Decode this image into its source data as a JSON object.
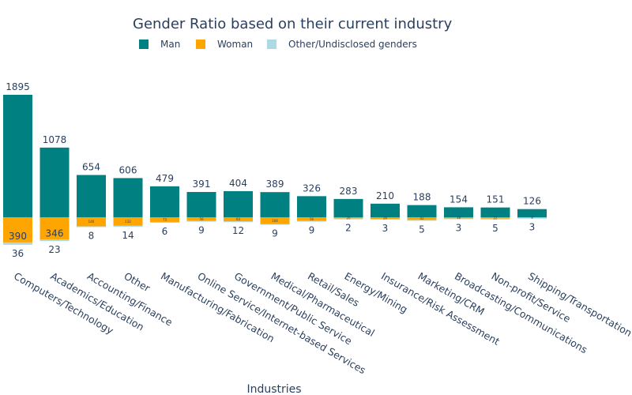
{
  "chart_data": {
    "type": "bar",
    "barmode": "relative",
    "title": "Gender Ratio based on their current industry",
    "xlabel": "Industries",
    "ylabel": "",
    "legend_position": "top",
    "categories": [
      "Computers/Technology",
      "Academics/Education",
      "Accounting/Finance",
      "Other",
      "Manufacturing/Fabrication",
      "Online Service/Internet-based Services",
      "Government/Public Service",
      "Medical/Pharmaceutical",
      "Retail/Sales",
      "Energy/Mining",
      "Insurance/Risk Assessment",
      "Marketing/CRM",
      "Broadcasting/Communications",
      "Non-profit/Service",
      "Shipping/Transportation"
    ],
    "series": [
      {
        "name": "Man",
        "color": "#008080",
        "values": [
          1895,
          1078,
          654,
          606,
          479,
          391,
          404,
          389,
          326,
          283,
          210,
          188,
          154,
          151,
          126
        ]
      },
      {
        "name": "Woman",
        "color": "#FFA500",
        "values": [
          390,
          346,
          140,
          132,
          73,
          56,
          64,
          104,
          56,
          20,
          26,
          42,
          18,
          22,
          9
        ]
      },
      {
        "name": "Other/Undisclosed genders",
        "color": "#ADD8E6",
        "values": [
          36,
          23,
          8,
          14,
          6,
          9,
          12,
          9,
          9,
          2,
          3,
          5,
          3,
          5,
          3
        ]
      }
    ]
  }
}
